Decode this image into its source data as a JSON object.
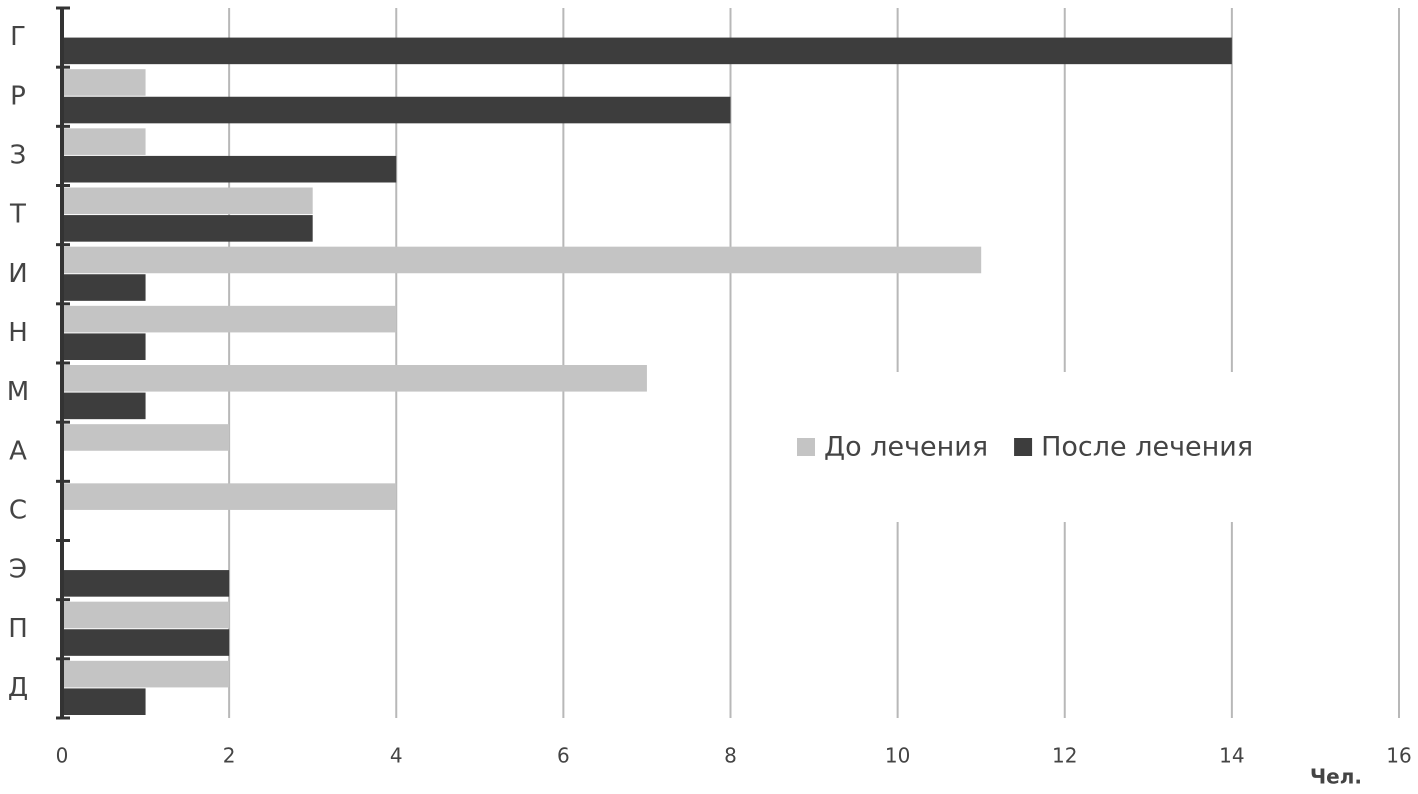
{
  "chart_data": {
    "type": "hbar",
    "categories": [
      "Г",
      "Р",
      "З",
      "Т",
      "И",
      "Н",
      "М",
      "А",
      "С",
      "Э",
      "П",
      "Д"
    ],
    "series": [
      {
        "name": "До лечения",
        "color": "#c4c4c4",
        "values": [
          0,
          1,
          1,
          3,
          11,
          4,
          7,
          2,
          4,
          0,
          2,
          2
        ]
      },
      {
        "name": "После лечения",
        "color": "#3d3d3d",
        "values": [
          14,
          8,
          4,
          3,
          1,
          1,
          1,
          0,
          0,
          2,
          2,
          1
        ]
      }
    ],
    "xlim": [
      0,
      16
    ],
    "xticks": [
      0,
      2,
      4,
      6,
      8,
      10,
      12,
      14,
      16
    ],
    "x_label": "Чел.",
    "grid": true,
    "legend": "center-right"
  }
}
